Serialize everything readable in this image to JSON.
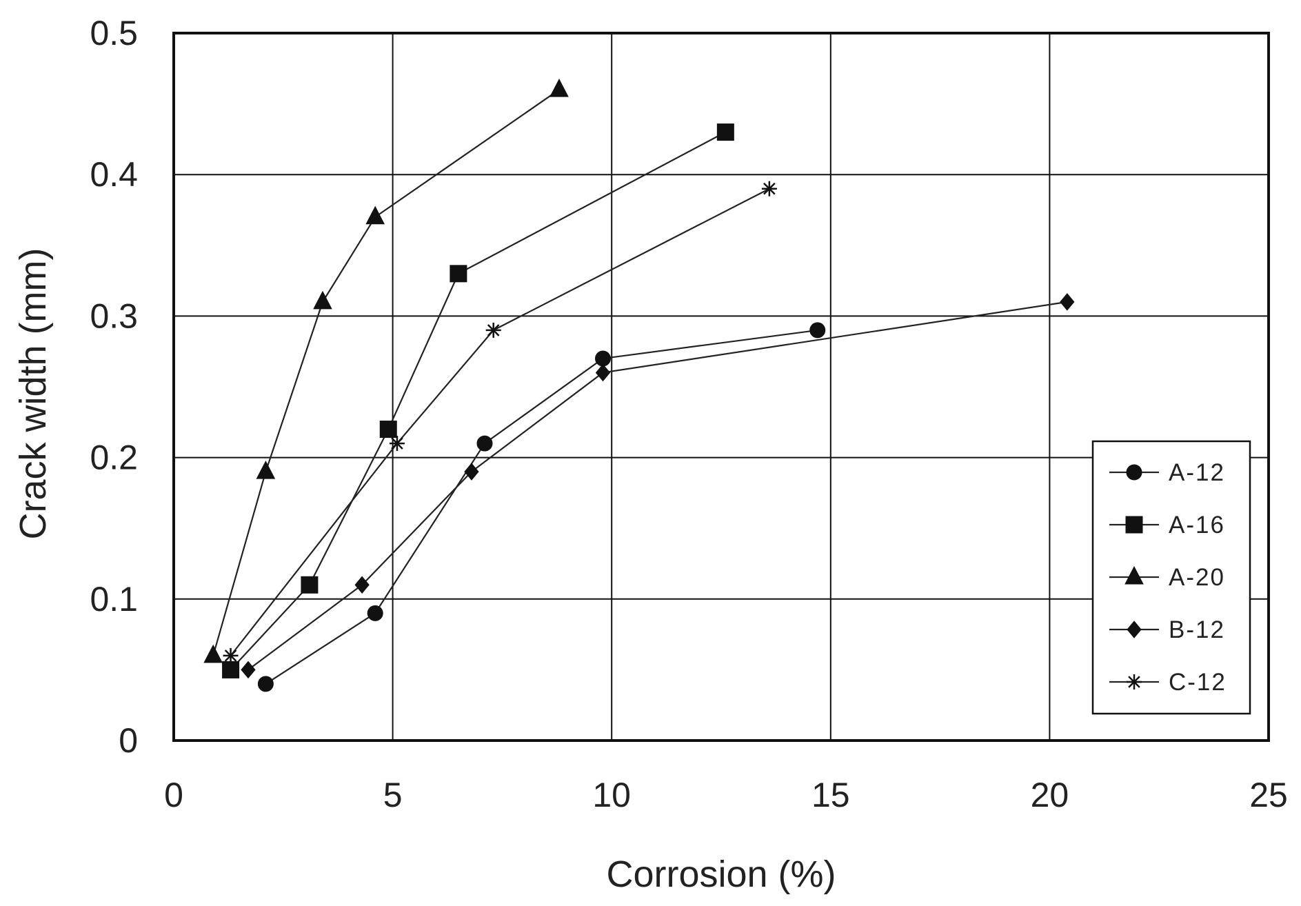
{
  "chart_data": {
    "type": "line",
    "title": "",
    "xlabel": "Corrosion (%)",
    "ylabel": "Crack width (mm)",
    "xlim": [
      0,
      25
    ],
    "ylim": [
      0,
      0.5
    ],
    "x_ticks": [
      "0",
      "5",
      "10",
      "15",
      "20",
      "25"
    ],
    "y_ticks": [
      "0",
      "0.1",
      "0.2",
      "0.3",
      "0.4",
      "0.5"
    ],
    "grid": true,
    "legend_position": "bottom-right",
    "series": [
      {
        "name": "A-12",
        "marker": "circle",
        "x": [
          2.1,
          4.6,
          7.1,
          9.8,
          14.7
        ],
        "y": [
          0.04,
          0.09,
          0.21,
          0.27,
          0.29
        ]
      },
      {
        "name": "A-16",
        "marker": "square",
        "x": [
          1.3,
          3.1,
          4.9,
          6.5,
          12.6
        ],
        "y": [
          0.05,
          0.11,
          0.22,
          0.33,
          0.43
        ]
      },
      {
        "name": "A-20",
        "marker": "triangle",
        "x": [
          0.9,
          2.1,
          3.4,
          4.6,
          8.8
        ],
        "y": [
          0.06,
          0.19,
          0.31,
          0.37,
          0.46
        ]
      },
      {
        "name": "B-12",
        "marker": "diamond",
        "x": [
          1.7,
          4.3,
          6.8,
          9.8,
          20.4
        ],
        "y": [
          0.05,
          0.11,
          0.19,
          0.26,
          0.31
        ]
      },
      {
        "name": "C-12",
        "marker": "star",
        "x": [
          1.3,
          5.1,
          7.3,
          13.6
        ],
        "y": [
          0.06,
          0.21,
          0.29,
          0.39
        ]
      }
    ]
  }
}
